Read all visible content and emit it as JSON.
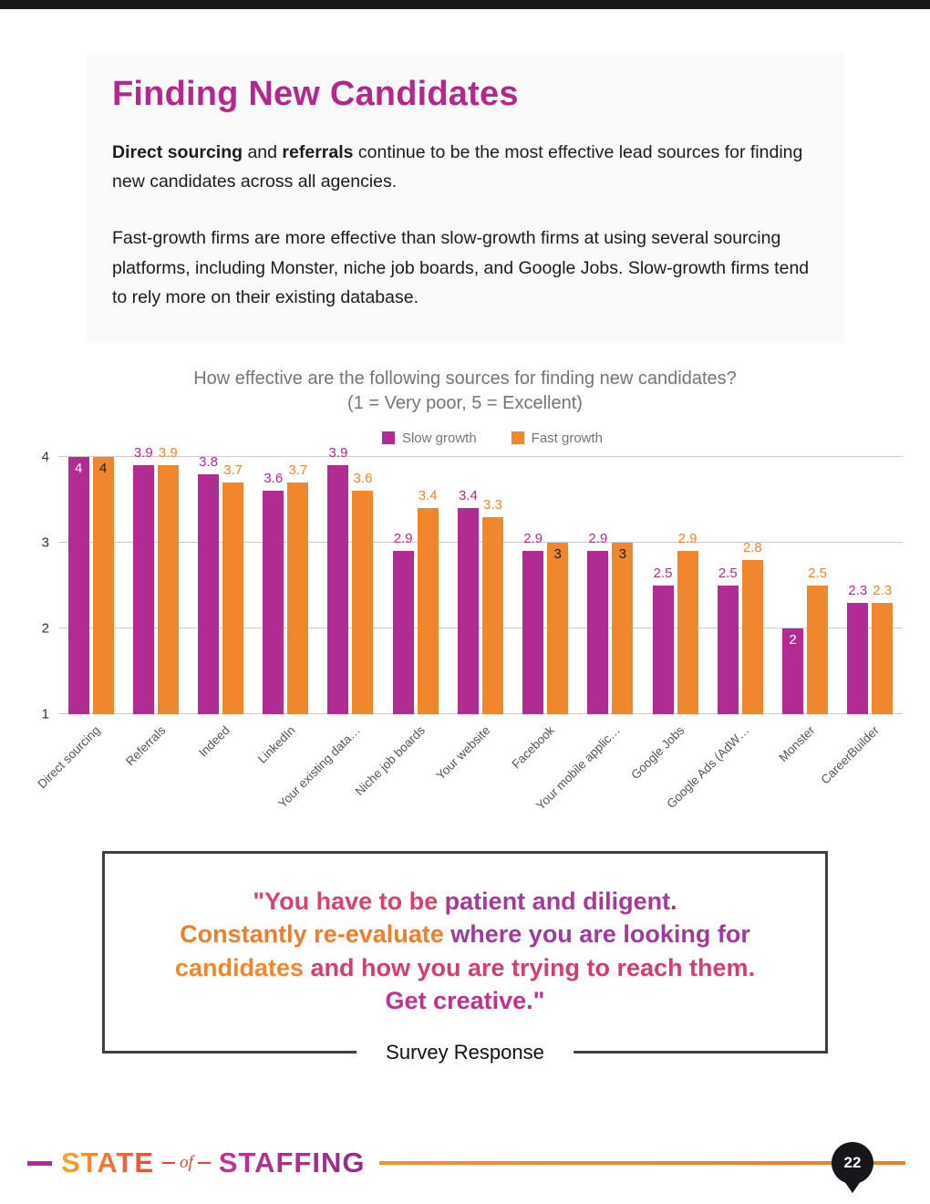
{
  "page": {
    "title": "Finding New Candidates",
    "page_number": "22"
  },
  "intro": {
    "p1_bold1": "Direct sourcing",
    "p1_mid": " and ",
    "p1_bold2": "referrals",
    "p1_rest": " continue to be the most effective lead sources for finding new candidates across all agencies.",
    "p2": "Fast-growth firms are more effective than slow-growth firms at using several sourcing platforms, including Monster, niche job boards, and Google Jobs. Slow-growth firms tend to rely more on their existing database."
  },
  "chart_data": {
    "type": "bar",
    "title": "How effective are the following sources for finding new candidates?",
    "subtitle": "(1 = Very poor, 5 = Excellent)",
    "ylim": [
      1,
      4
    ],
    "yticks": [
      4,
      3,
      2,
      1
    ],
    "grid": true,
    "legend_position": "top",
    "categories": [
      "Direct sourcing",
      "Referrals",
      "Indeed",
      "LinkedIn",
      "Your existing data…",
      "Niche job boards",
      "Your website",
      "Facebook",
      "Your mobile applic…",
      "Google Jobs",
      "Google Ads (AdW…",
      "Monster",
      "CareerBuilder"
    ],
    "series": [
      {
        "name": "Slow growth",
        "color": "#b02c93",
        "values": [
          4,
          3.9,
          3.8,
          3.6,
          3.9,
          2.9,
          3.4,
          2.9,
          2.9,
          2.5,
          2.5,
          2,
          2.3
        ]
      },
      {
        "name": "Fast growth",
        "color": "#f0862e",
        "values": [
          4,
          3.9,
          3.7,
          3.7,
          3.6,
          3.4,
          3.3,
          3,
          3,
          2.9,
          2.8,
          2.5,
          2.3
        ]
      }
    ],
    "inside_labels": [
      [
        0,
        11
      ],
      [
        0,
        7,
        8
      ]
    ]
  },
  "quote": {
    "lines": [
      [
        {
          "text": "\"You have to be ",
          "color": "#d94368"
        },
        {
          "text": "patient and diligent.",
          "color": "#a63a99"
        }
      ],
      [
        {
          "text": "Constantly re-evaluate ",
          "color": "#ef7d2e"
        },
        {
          "text": "where you are looking for",
          "color": "#a03a9d"
        }
      ],
      [
        {
          "text": "candidates ",
          "color": "#f0872e"
        },
        {
          "text": "and how you are trying to reach them.",
          "color": "#d23e72"
        }
      ],
      [
        {
          "text": "Get creative.\"",
          "color": "#bf3390"
        }
      ]
    ],
    "attribution": "Survey Response"
  },
  "footer": {
    "logo_state": "STATE",
    "logo_of": "of",
    "logo_staffing": "STAFFING"
  }
}
